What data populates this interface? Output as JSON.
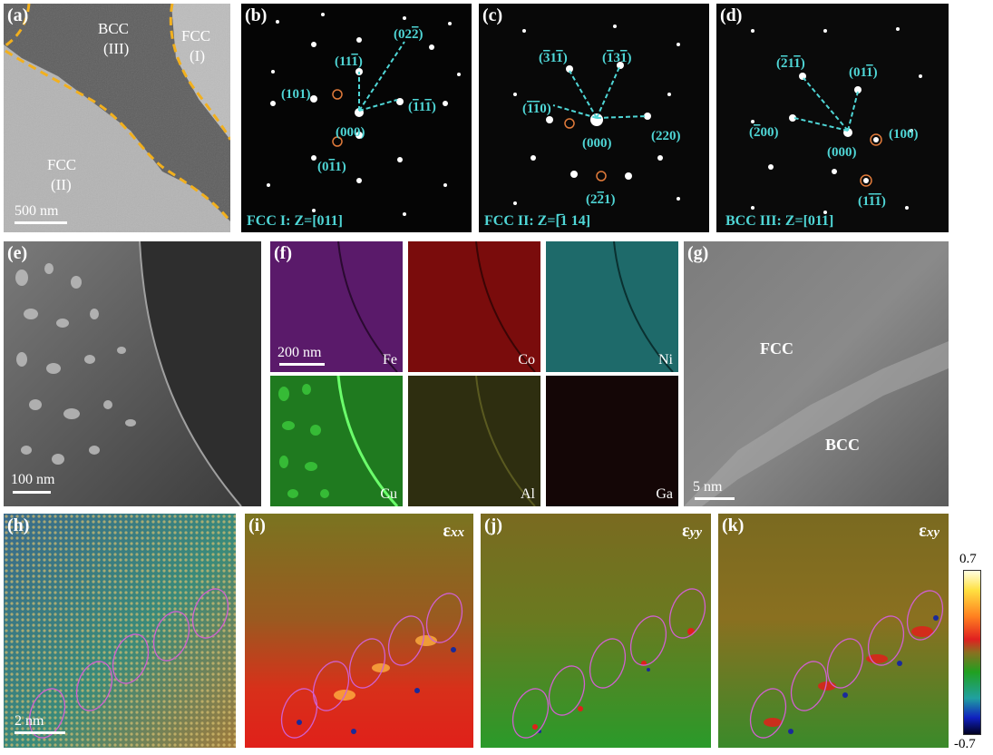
{
  "panels": {
    "a": {
      "label": "(a)",
      "regions": {
        "bcc": "BCC",
        "bcc_num": "(III)",
        "fcc1": "FCC",
        "fcc1_num": "(I)",
        "fcc2": "FCC",
        "fcc2_num": "(II)"
      },
      "scale": "500 nm"
    },
    "b": {
      "label": "(b)",
      "zone": "FCC I: Z=[011]"
    },
    "c": {
      "label": "(c)",
      "zone": "FCC II: Z=[̅1 14]"
    },
    "d": {
      "label": "(d)",
      "zone": "BCC III: Z=[011]"
    },
    "e": {
      "label": "(e)",
      "scale": "100 nm"
    },
    "f": {
      "label": "(f)",
      "scale": "200 nm",
      "elements": [
        "Fe",
        "Co",
        "Ni",
        "Cu",
        "Al",
        "Ga"
      ]
    },
    "g": {
      "label": "(g)",
      "fcc": "FCC",
      "bcc": "BCC",
      "scale": "5 nm"
    },
    "h": {
      "label": "(h)",
      "scale": "2 nm"
    },
    "i": {
      "label": "(i)",
      "strain": "ε",
      "sub": "xx"
    },
    "j": {
      "label": "(j)",
      "strain": "ε",
      "sub": "yy"
    },
    "k": {
      "label": "(k)",
      "strain": "ε",
      "sub": "xy"
    }
  },
  "colorbar": {
    "max": "0.7",
    "min": "-0.7"
  },
  "colors": {
    "diffraction_label": "#4fd6d6",
    "interface_line": "#f2b01e",
    "circle": "#e07a3a"
  }
}
